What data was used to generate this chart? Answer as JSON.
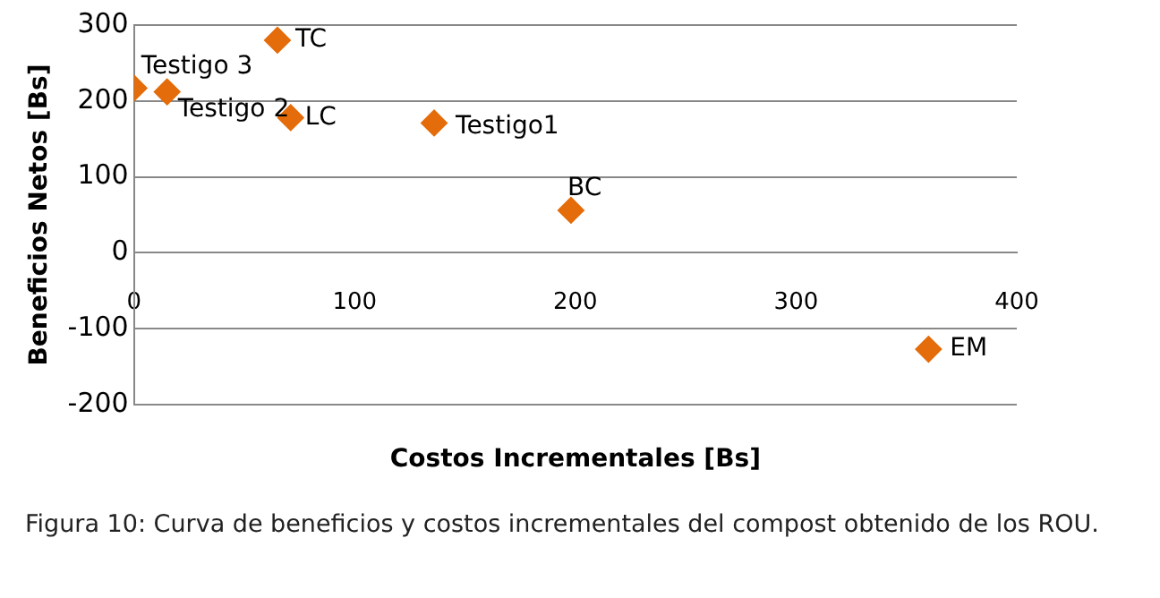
{
  "chart_data": {
    "type": "scatter",
    "xlabel": "Costos Incrementales [Bs]",
    "ylabel": "Beneficios Netos [Bs]",
    "xlim": [
      0,
      400
    ],
    "xticks": [
      0,
      100,
      200,
      300,
      400
    ],
    "ylim": [
      -200,
      300
    ],
    "yticks": [
      -200,
      -100,
      0,
      100,
      200,
      300
    ],
    "grid": "y",
    "legend": false,
    "marker": "diamond",
    "series": [
      {
        "name": "Testigo 3",
        "color": "#e46c0a",
        "x": [
          0
        ],
        "values": [
          217
        ]
      },
      {
        "name": "Testigo 2",
        "color": "#e46c0a",
        "x": [
          15
        ],
        "values": [
          212
        ]
      },
      {
        "name": "TC",
        "color": "#e46c0a",
        "x": [
          65
        ],
        "values": [
          280
        ]
      },
      {
        "name": "LC",
        "color": "#e46c0a",
        "x": [
          71
        ],
        "values": [
          178
        ]
      },
      {
        "name": "Testigo1",
        "color": "#e46c0a",
        "x": [
          136
        ],
        "values": [
          171
        ]
      },
      {
        "name": "BC",
        "color": "#e46c0a",
        "x": [
          198
        ],
        "values": [
          56
        ]
      },
      {
        "name": "EM",
        "color": "#e46c0a",
        "x": [
          360
        ],
        "values": [
          -127
        ]
      }
    ],
    "annotations": [
      "Figura 10:  Curva de beneficios y costos incrementales del compost obtenido de los ROU."
    ]
  }
}
